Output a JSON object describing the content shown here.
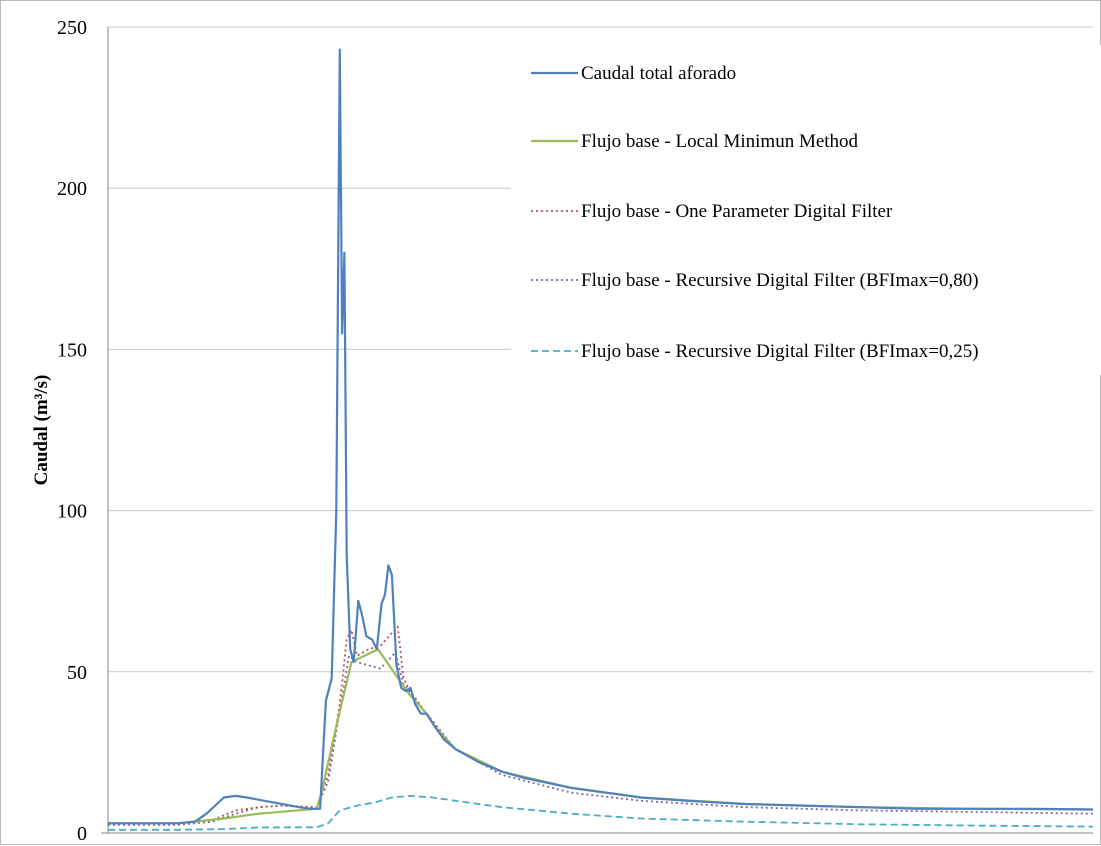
{
  "chart_data": {
    "type": "line",
    "title": "",
    "xlabel": "",
    "ylabel": "Caudal (m³/s)",
    "ylim": [
      0,
      250
    ],
    "yticks": [
      0,
      50,
      100,
      150,
      200,
      250
    ],
    "grid": "horizontal",
    "legend_position": "top-right",
    "series": [
      {
        "name": "Caudal total aforado",
        "color": "#4f81bd",
        "style": "solid",
        "points": [
          [
            0,
            3
          ],
          [
            20,
            3
          ],
          [
            40,
            3
          ],
          [
            60,
            3
          ],
          [
            75,
            3.5
          ],
          [
            85,
            6
          ],
          [
            100,
            11
          ],
          [
            110,
            11.5
          ],
          [
            120,
            11
          ],
          [
            135,
            10
          ],
          [
            150,
            9
          ],
          [
            165,
            8
          ],
          [
            175,
            7.5
          ],
          [
            183,
            7.5
          ],
          [
            188,
            41
          ],
          [
            193,
            48
          ],
          [
            197,
            100
          ],
          [
            200,
            243
          ],
          [
            202,
            155
          ],
          [
            204,
            180
          ],
          [
            206,
            86
          ],
          [
            209,
            57
          ],
          [
            212,
            53
          ],
          [
            216,
            72
          ],
          [
            219,
            68
          ],
          [
            223,
            61
          ],
          [
            228,
            60
          ],
          [
            232,
            57
          ],
          [
            236,
            71
          ],
          [
            239,
            74
          ],
          [
            242,
            83
          ],
          [
            245,
            80
          ],
          [
            249,
            52
          ],
          [
            253,
            45
          ],
          [
            257,
            44
          ],
          [
            261,
            45
          ],
          [
            265,
            40
          ],
          [
            270,
            37
          ],
          [
            275,
            37
          ],
          [
            282,
            33
          ],
          [
            290,
            29
          ],
          [
            300,
            26
          ],
          [
            320,
            22
          ],
          [
            340,
            19
          ],
          [
            360,
            17
          ],
          [
            380,
            15.5
          ],
          [
            400,
            14
          ],
          [
            430,
            12.5
          ],
          [
            460,
            11
          ],
          [
            500,
            10
          ],
          [
            550,
            9
          ],
          [
            600,
            8.5
          ],
          [
            650,
            8
          ],
          [
            700,
            7.5
          ],
          [
            750,
            7.5
          ],
          [
            800,
            7.5
          ],
          [
            850,
            7.3
          ]
        ]
      },
      {
        "name": "Flujo base - Local Minimun Method",
        "color": "#9bbb59",
        "style": "solid",
        "points": [
          [
            0,
            3
          ],
          [
            60,
            3
          ],
          [
            100,
            4.5
          ],
          [
            130,
            6
          ],
          [
            180,
            7.5
          ],
          [
            184,
            12
          ],
          [
            195,
            30
          ],
          [
            210,
            53
          ],
          [
            233,
            57
          ],
          [
            260,
            43
          ],
          [
            275,
            37
          ],
          [
            282,
            33
          ],
          [
            300,
            26
          ],
          [
            340,
            19
          ],
          [
            400,
            14
          ],
          [
            460,
            11
          ],
          [
            550,
            9
          ],
          [
            650,
            8
          ],
          [
            750,
            7.5
          ],
          [
            850,
            7.3
          ]
        ]
      },
      {
        "name": "Flujo base - One Parameter Digital Filter",
        "color": "#c0504d",
        "style": "dotted",
        "points": [
          [
            0,
            3
          ],
          [
            60,
            3
          ],
          [
            90,
            4
          ],
          [
            110,
            7
          ],
          [
            130,
            8
          ],
          [
            150,
            8.5
          ],
          [
            180,
            8
          ],
          [
            190,
            18
          ],
          [
            200,
            40
          ],
          [
            206,
            60
          ],
          [
            210,
            63
          ],
          [
            215,
            55
          ],
          [
            225,
            57
          ],
          [
            235,
            58
          ],
          [
            245,
            62
          ],
          [
            250,
            64
          ],
          [
            255,
            48
          ],
          [
            262,
            43
          ],
          [
            275,
            37
          ],
          [
            300,
            26
          ],
          [
            340,
            19
          ],
          [
            400,
            14
          ],
          [
            460,
            11
          ],
          [
            550,
            9
          ],
          [
            650,
            8
          ],
          [
            750,
            7.5
          ],
          [
            850,
            7.3
          ]
        ]
      },
      {
        "name": "Flujo base - Recursive Digital Filter (BFImax=0,80)",
        "color": "#8064a2",
        "style": "dotted",
        "points": [
          [
            0,
            2.5
          ],
          [
            60,
            2.5
          ],
          [
            90,
            3.5
          ],
          [
            110,
            6
          ],
          [
            130,
            8
          ],
          [
            150,
            8.5
          ],
          [
            180,
            7.8
          ],
          [
            190,
            16
          ],
          [
            200,
            38
          ],
          [
            208,
            55
          ],
          [
            215,
            53
          ],
          [
            225,
            52
          ],
          [
            235,
            51
          ],
          [
            248,
            56
          ],
          [
            255,
            46
          ],
          [
            265,
            42
          ],
          [
            280,
            34
          ],
          [
            300,
            26
          ],
          [
            340,
            18
          ],
          [
            400,
            12.5
          ],
          [
            460,
            10
          ],
          [
            550,
            8
          ],
          [
            650,
            7
          ],
          [
            750,
            6.5
          ],
          [
            850,
            6
          ]
        ]
      },
      {
        "name": "Flujo base - Recursive Digital Filter (BFImax=0,25)",
        "color": "#4bacc6",
        "style": "dashed",
        "points": [
          [
            0,
            1
          ],
          [
            60,
            1
          ],
          [
            100,
            1.2
          ],
          [
            130,
            1.7
          ],
          [
            180,
            1.8
          ],
          [
            190,
            3
          ],
          [
            200,
            7
          ],
          [
            215,
            8.5
          ],
          [
            230,
            9.5
          ],
          [
            245,
            11
          ],
          [
            260,
            11.5
          ],
          [
            280,
            11
          ],
          [
            300,
            10
          ],
          [
            340,
            8
          ],
          [
            400,
            6
          ],
          [
            460,
            4.5
          ],
          [
            550,
            3.5
          ],
          [
            650,
            2.7
          ],
          [
            750,
            2.3
          ],
          [
            850,
            2
          ]
        ]
      }
    ]
  }
}
